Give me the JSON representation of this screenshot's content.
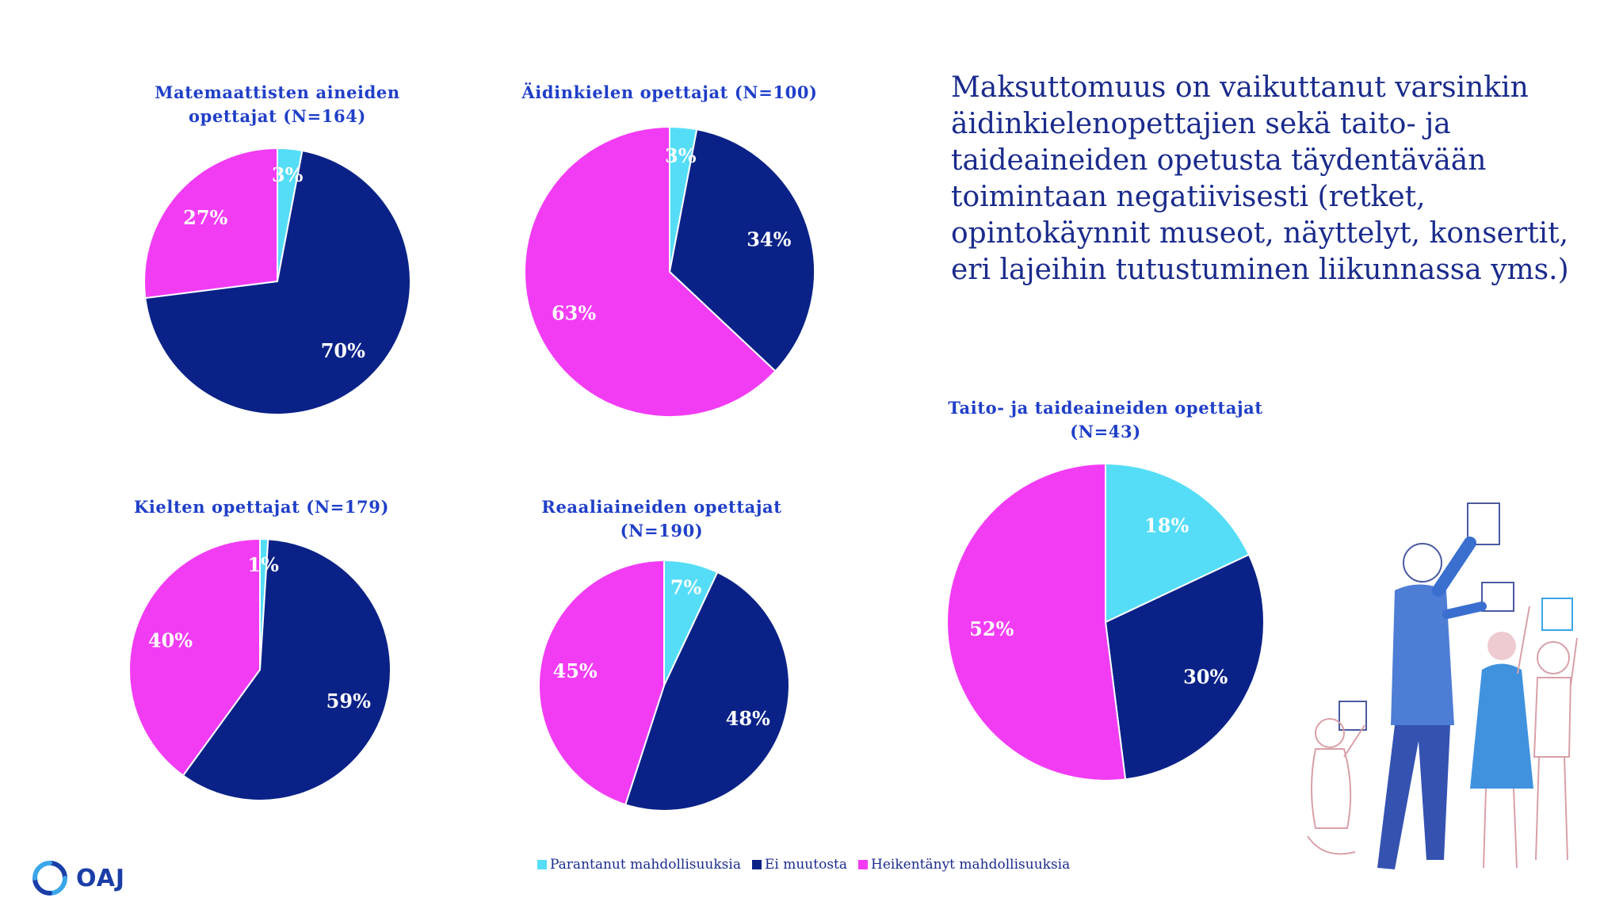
{
  "colors": {
    "improved": "#55ddf7",
    "no_change": "#0a2287",
    "weakened": "#f23cf4",
    "title": "#1f3fc8",
    "text": "#1a2b8c"
  },
  "statement": "Maksuttomuus on vaikuttanut varsinkin äidinkielenopettajien sekä taito- ja taideaineiden opetusta täydentävään toimintaan negatiivisesti (retket, opintokäynnit museot, näyttelyt, konsertit, eri lajeihin tutustuminen liikunnassa yms.)",
  "logo": {
    "text": "OAJ",
    "icon": "oaj-swirl-icon"
  },
  "illustration": {
    "icon": "teacher-and-children-drawing-icon"
  },
  "legend": [
    {
      "label": "Parantanut mahdollisuuksia",
      "color": "#55ddf7"
    },
    {
      "label": "Ei muutosta",
      "color": "#0a2287"
    },
    {
      "label": "Heikentänyt mahdollisuuksia",
      "color": "#f23cf4"
    }
  ],
  "chart_data": [
    {
      "type": "pie",
      "title": "Matemaattisten aineiden opettajat (N=164)",
      "categories": [
        "Parantanut mahdollisuuksia",
        "Ei muutosta",
        "Heikentänyt mahdollisuuksia"
      ],
      "values": [
        3,
        70,
        27
      ],
      "labels": [
        "3%",
        "70%",
        "27%"
      ]
    },
    {
      "type": "pie",
      "title": "Äidinkielen opettajat (N=100)",
      "categories": [
        "Parantanut mahdollisuuksia",
        "Ei muutosta",
        "Heikentänyt mahdollisuuksia"
      ],
      "values": [
        3,
        34,
        63
      ],
      "labels": [
        "3%",
        "34%",
        "63%"
      ]
    },
    {
      "type": "pie",
      "title": "Taito- ja taideaineiden opettajat (N=43)",
      "categories": [
        "Parantanut mahdollisuuksia",
        "Ei muutosta",
        "Heikentänyt mahdollisuuksia"
      ],
      "values": [
        18,
        30,
        52
      ],
      "labels": [
        "18%",
        "30%",
        "52%"
      ]
    },
    {
      "type": "pie",
      "title": "Kielten opettajat (N=179)",
      "categories": [
        "Parantanut mahdollisuuksia",
        "Ei muutosta",
        "Heikentänyt mahdollisuuksia"
      ],
      "values": [
        1,
        59,
        40
      ],
      "labels": [
        "1%",
        "59%",
        "40%"
      ]
    },
    {
      "type": "pie",
      "title": "Reaaliaineiden opettajat (N=190)",
      "categories": [
        "Parantanut mahdollisuuksia",
        "Ei muutosta",
        "Heikentänyt mahdollisuuksia"
      ],
      "values": [
        7,
        48,
        45
      ],
      "labels": [
        "7%",
        "48%",
        "45%"
      ]
    }
  ]
}
